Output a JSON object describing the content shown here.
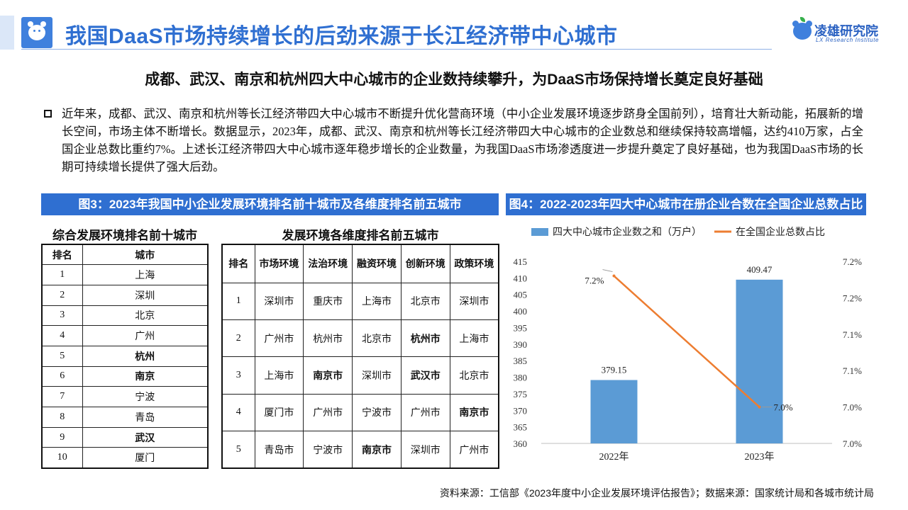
{
  "header": {
    "title": "我国DaaS市场持续增长的后劲来源于长江经济带中心城市",
    "brand_name": "凌雄研究院",
    "brand_sub": "LX Research Institute"
  },
  "subtitle": "成都、武汉、南京和杭州四大中心城市的企业数持续攀升，为DaaS市场保持增长奠定良好基础",
  "paragraph": "近年来，成都、武汉、南京和杭州等长江经济带四大中心城市不断提升优化营商环境（中小企业发展环境逐步跻身全国前列），培育壮大新动能，拓展新的增长空间，市场主体不断增长。数据显示，2023年，成都、武汉、南京和杭州等长江经济带四大中心城市的企业数总和继续保持较高增幅，达约410万家，占全国企业总数比重约7%。上述长江经济带四大中心城市逐年稳步增长的企业数量，为我国DaaS市场渗透度进一步提升奠定了良好基础，也为我国DaaS市场的长期可持续增长提供了强大后劲。",
  "fig3": {
    "banner": "图3：2023年我国中小企业发展环境排名前十城市及各维度排名前五城市",
    "table1": {
      "title": "综合发展环境排名前十城市",
      "headers": [
        "排名",
        "城市"
      ],
      "rows": [
        {
          "rank": "1",
          "city": "上海",
          "bold": false
        },
        {
          "rank": "2",
          "city": "深圳",
          "bold": false
        },
        {
          "rank": "3",
          "city": "北京",
          "bold": false
        },
        {
          "rank": "4",
          "city": "广州",
          "bold": false
        },
        {
          "rank": "5",
          "city": "杭州",
          "bold": true
        },
        {
          "rank": "6",
          "city": "南京",
          "bold": true
        },
        {
          "rank": "7",
          "city": "宁波",
          "bold": false
        },
        {
          "rank": "8",
          "city": "青岛",
          "bold": false
        },
        {
          "rank": "9",
          "city": "武汉",
          "bold": true
        },
        {
          "rank": "10",
          "city": "厦门",
          "bold": false
        }
      ]
    },
    "table2": {
      "title": "发展环境各维度排名前五城市",
      "headers": [
        "排名",
        "市场环境",
        "法治环境",
        "融资环境",
        "创新环境",
        "政策环境"
      ],
      "rows": [
        {
          "rank": "1",
          "cells": [
            [
              "深圳市",
              false
            ],
            [
              "重庆市",
              false
            ],
            [
              "上海市",
              false
            ],
            [
              "北京市",
              false
            ],
            [
              "深圳市",
              false
            ]
          ]
        },
        {
          "rank": "2",
          "cells": [
            [
              "广州市",
              false
            ],
            [
              "杭州市",
              false
            ],
            [
              "北京市",
              false
            ],
            [
              "杭州市",
              true
            ],
            [
              "上海市",
              false
            ]
          ]
        },
        {
          "rank": "3",
          "cells": [
            [
              "上海市",
              false
            ],
            [
              "南京市",
              true
            ],
            [
              "深圳市",
              false
            ],
            [
              "武汉市",
              true
            ],
            [
              "北京市",
              false
            ]
          ]
        },
        {
          "rank": "4",
          "cells": [
            [
              "厦门市",
              false
            ],
            [
              "广州市",
              false
            ],
            [
              "宁波市",
              false
            ],
            [
              "广州市",
              false
            ],
            [
              "南京市",
              true
            ]
          ]
        },
        {
          "rank": "5",
          "cells": [
            [
              "青岛市",
              false
            ],
            [
              "宁波市",
              false
            ],
            [
              "南京市",
              true
            ],
            [
              "深圳市",
              false
            ],
            [
              "广州市",
              false
            ]
          ]
        }
      ]
    }
  },
  "fig4": {
    "banner": "图4：2022-2023年四大中心城市在册企业合数在全国企业总数占比"
  },
  "chart_data": {
    "type": "bar",
    "categories": [
      "2022年",
      "2023年"
    ],
    "series": [
      {
        "name": "四大中心城市企业数之和（万户）",
        "type": "bar",
        "axis": "left",
        "values": [
          379.15,
          409.47
        ],
        "labels": [
          "379.15",
          "409.47"
        ],
        "color": "#5b9bd5"
      },
      {
        "name": "在全国企业总数占比",
        "type": "line",
        "axis": "right",
        "values": [
          7.23,
          7.05
        ],
        "labels": [
          "7.2%",
          "7.0%"
        ],
        "color": "#ed7d31"
      }
    ],
    "ylim": [
      360,
      415
    ],
    "yticks": [
      360,
      365,
      370,
      375,
      380,
      385,
      390,
      395,
      400,
      405,
      410,
      415
    ],
    "y2lim": [
      7.0,
      7.25
    ],
    "y2ticks": [
      7.0,
      7.05,
      7.1,
      7.15,
      7.2,
      7.25
    ],
    "y2ticklabels": [
      "7.0%",
      "7.0%",
      "7.1%",
      "7.1%",
      "7.2%",
      "7.2%"
    ],
    "legend": "top",
    "grid": false
  },
  "footer": {
    "source": "资料来源：工信部《2023年度中小企业发展环境评估报告》；数据来源：国家统计局和各城市统计局"
  }
}
